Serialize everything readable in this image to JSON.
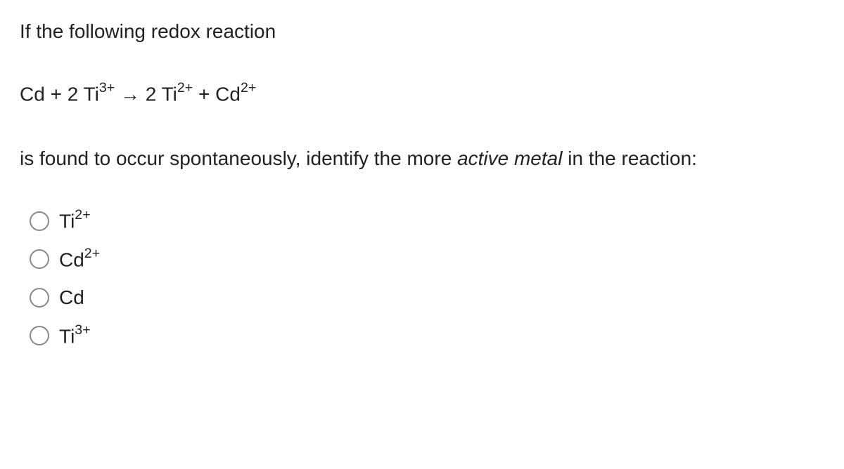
{
  "question": {
    "intro": "If the following redox reaction",
    "equation_parts": {
      "lhs1": "Cd + 2 Ti",
      "lhs1_sup": "3+",
      "arrow": " → 2 Ti",
      "mid_sup": "2+",
      "plus": " + Cd",
      "rhs_sup": "2+"
    },
    "continued_pre": "is found to occur spontaneously, identify the more ",
    "continued_italic": "active metal",
    "continued_post": " in the reaction:"
  },
  "options": [
    {
      "base": "Ti",
      "sup": "2+"
    },
    {
      "base": "Cd",
      "sup": "2+"
    },
    {
      "base": "Cd",
      "sup": ""
    },
    {
      "base": "Ti",
      "sup": "3+"
    }
  ]
}
